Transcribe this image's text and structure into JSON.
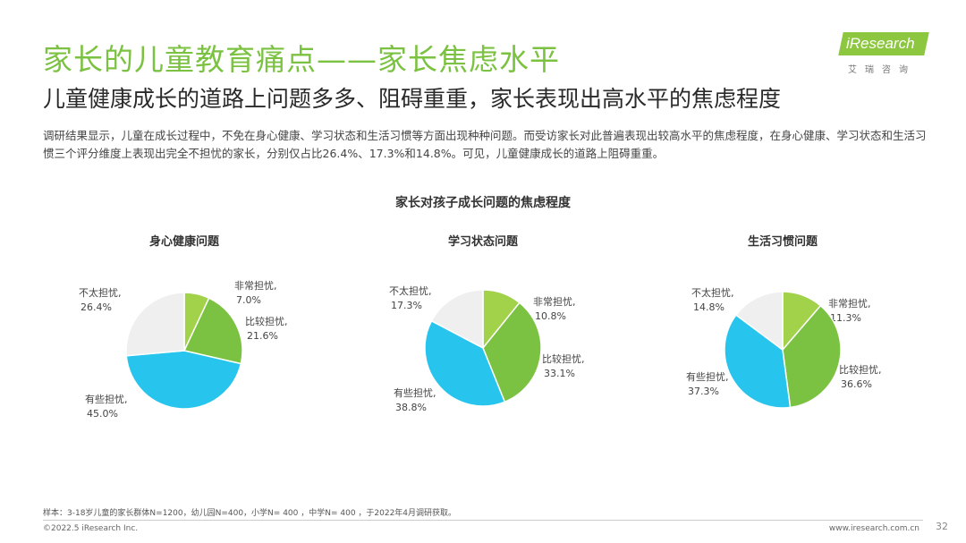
{
  "header": {
    "title": "家长的儿童教育痛点——家长焦虑水平",
    "subtitle": "儿童健康成长的道路上问题多多、阻碍重重，家长表现出高水平的焦虑程度",
    "description": "调研结果显示，儿童在成长过程中，不免在身心健康、学习状态和生活习惯等方面出现种种问题。而受访家长对此普遍表现出较高水平的焦虑程度，在身心健康、学习状态和生活习惯三个评分维度上表现出完全不担忧的家长，分别仅占比26.4%、17.3%和14.8%。可见，儿童健康成长的道路上阻碍重重。"
  },
  "logo": {
    "name": "iResearch",
    "sub": "艾瑞咨询"
  },
  "colors": {
    "very_worried": "#a2d14a",
    "relatively_worried": "#7cc242",
    "somewhat_worried": "#27c5ed",
    "not_worried": "#efefef"
  },
  "chart_data": {
    "type": "pie",
    "title": "家长对孩子成长问题的焦虑程度",
    "charts": [
      {
        "title": "身心健康问题",
        "slices": [
          {
            "label": "非常担忧,",
            "value": 7.0,
            "display": "7.0%"
          },
          {
            "label": "比较担忧,",
            "value": 21.6,
            "display": "21.6%"
          },
          {
            "label": "有些担忧,",
            "value": 45.0,
            "display": "45.0%"
          },
          {
            "label": "不太担忧,",
            "value": 26.4,
            "display": "26.4%"
          }
        ]
      },
      {
        "title": "学习状态问题",
        "slices": [
          {
            "label": "非常担忧,",
            "value": 10.8,
            "display": "10.8%"
          },
          {
            "label": "比较担忧,",
            "value": 33.1,
            "display": "33.1%"
          },
          {
            "label": "有些担忧,",
            "value": 38.8,
            "display": "38.8%"
          },
          {
            "label": "不太担忧,",
            "value": 17.3,
            "display": "17.3%"
          }
        ]
      },
      {
        "title": "生活习惯问题",
        "slices": [
          {
            "label": "非常担忧,",
            "value": 11.3,
            "display": "11.3%"
          },
          {
            "label": "比较担忧,",
            "value": 36.6,
            "display": "36.6%"
          },
          {
            "label": "有些担忧,",
            "value": 37.3,
            "display": "37.3%"
          },
          {
            "label": "不太担忧,",
            "value": 14.8,
            "display": "14.8%"
          }
        ]
      }
    ]
  },
  "footer": {
    "note": "样本：3-18岁儿童的家长群体N=1200，幼儿园N=400，小学N= 400 ，中学N= 400 ，于2022年4月调研获取。",
    "copyright": "©2022.5 iResearch Inc.",
    "site": "www.iresearch.com.cn",
    "page": "32"
  }
}
